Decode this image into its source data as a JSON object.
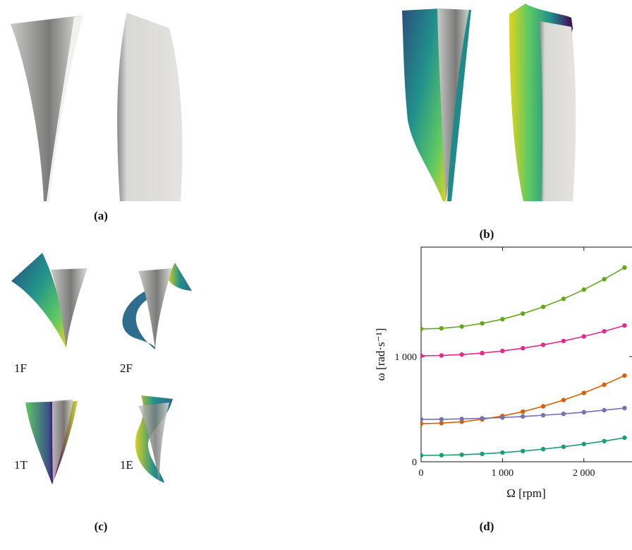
{
  "panels": {
    "a": {
      "caption": "(a)"
    },
    "b": {
      "caption": "(b)"
    },
    "c": {
      "caption": "(c)",
      "modes": [
        "1F",
        "2F",
        "1T",
        "1E"
      ]
    },
    "d": {
      "caption": "(d)"
    }
  },
  "chart_data": {
    "type": "line",
    "xlabel": "Ω [rpm]",
    "ylabel": "ω [rad·s⁻¹]",
    "x": [
      0,
      250,
      500,
      750,
      1000,
      1250,
      1500,
      1750,
      2000,
      2250,
      2500
    ],
    "series": [
      {
        "color": "#66a61e",
        "values": [
          1262,
          1268,
          1285,
          1315,
          1355,
          1408,
          1472,
          1548,
          1636,
          1735,
          1846
        ]
      },
      {
        "color": "#e7298a",
        "values": [
          1007,
          1010,
          1019,
          1033,
          1053,
          1079,
          1111,
          1148,
          1191,
          1240,
          1295
        ]
      },
      {
        "color": "#d95f02",
        "values": [
          362,
          367,
          380,
          403,
          435,
          476,
          527,
          586,
          654,
          732,
          819
        ]
      },
      {
        "color": "#7570b3",
        "values": [
          403,
          404,
          407,
          413,
          420,
          430,
          442,
          455,
          471,
          490,
          510
        ]
      },
      {
        "color": "#1b9e77",
        "values": [
          60,
          62,
          67,
          75,
          87,
          102,
          120,
          142,
          168,
          196,
          228
        ]
      }
    ],
    "xlim": [
      0,
      2600
    ],
    "ylim": [
      0,
      2040
    ],
    "xticks": [
      0,
      {
        "value": 1000,
        "label": "1 000"
      },
      {
        "value": 2000,
        "label": "2 000"
      }
    ],
    "yticks": [
      0,
      {
        "value": 1000,
        "label": "1 000"
      }
    ]
  }
}
